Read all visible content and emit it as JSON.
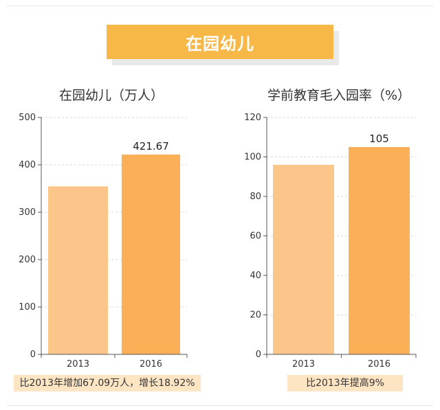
{
  "banner": {
    "title": "在园幼儿"
  },
  "colors": {
    "banner": "#f7b847",
    "bar_2013": "#fcc68a",
    "bar_2016": "#fbaf57",
    "note_bg": "#fde5c4"
  },
  "chart_data": [
    {
      "type": "bar",
      "title": "在园幼儿（万人）",
      "categories": [
        "2013",
        "2016"
      ],
      "values": [
        354.6,
        421.67
      ],
      "data_labels": [
        "",
        "421.67"
      ],
      "ylim": [
        0,
        500
      ],
      "yticks": [
        0,
        100,
        200,
        300,
        400,
        500
      ],
      "grid": true,
      "note": "比2013年增加67.09万人，增长18.92%"
    },
    {
      "type": "bar",
      "title": "学前教育毛入园率（%）",
      "categories": [
        "2013",
        "2016"
      ],
      "values": [
        96,
        105
      ],
      "data_labels": [
        "",
        "105"
      ],
      "ylim": [
        0,
        120
      ],
      "yticks": [
        0,
        20,
        40,
        60,
        80,
        100,
        120
      ],
      "grid": true,
      "note": "比2013年提高9%"
    }
  ]
}
